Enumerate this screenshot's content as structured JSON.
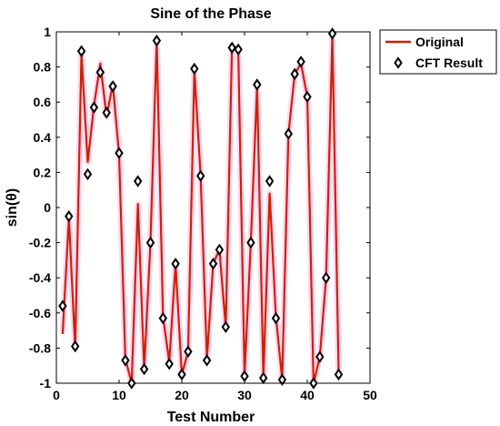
{
  "chart_data": {
    "type": "line",
    "title": "Sine of the Phase",
    "xlabel": "Test Number",
    "ylabel": "sin(θ)",
    "xlim": [
      0,
      50
    ],
    "ylim": [
      -1,
      1
    ],
    "xticks": [
      "0",
      "10",
      "20",
      "30",
      "40",
      "50"
    ],
    "yticks": [
      "1",
      "0.8",
      "0.6",
      "0.4",
      "0.2",
      "0",
      "-0.2",
      "-0.4",
      "-0.6",
      "-0.8",
      "-1"
    ],
    "grid": false,
    "legend_position": "outside-top-right",
    "colors": {
      "original": "#cc2200",
      "markers": "#000000",
      "glow": "#ff44cc"
    },
    "series": [
      {
        "name": "Original",
        "style": "line",
        "x": [
          1,
          2,
          3,
          4,
          5,
          6,
          7,
          8,
          9,
          10,
          11,
          12,
          13,
          14,
          15,
          16,
          17,
          18,
          19,
          20,
          21,
          22,
          23,
          24,
          25,
          26,
          27,
          28,
          29,
          30,
          31,
          32,
          33,
          34,
          35,
          36,
          37,
          38,
          39,
          40,
          41,
          42,
          43,
          44,
          45
        ],
        "y": [
          -0.72,
          -0.06,
          -0.8,
          0.87,
          0.26,
          0.58,
          0.82,
          0.52,
          0.7,
          0.3,
          -0.86,
          -1.0,
          0.02,
          -0.92,
          -0.2,
          0.95,
          -0.62,
          -0.88,
          -0.32,
          -0.95,
          -0.82,
          0.78,
          0.18,
          -0.86,
          -0.32,
          -0.24,
          -0.68,
          0.91,
          0.89,
          -0.95,
          -0.2,
          0.69,
          -0.96,
          0.08,
          -0.62,
          -0.98,
          0.42,
          0.76,
          0.82,
          0.63,
          -1.0,
          -0.85,
          -0.4,
          0.98,
          -0.94
        ]
      },
      {
        "name": "CFT Result",
        "style": "marker",
        "x": [
          1,
          2,
          3,
          4,
          5,
          6,
          7,
          8,
          9,
          10,
          11,
          12,
          13,
          14,
          15,
          16,
          17,
          18,
          19,
          20,
          21,
          22,
          23,
          24,
          25,
          26,
          27,
          28,
          29,
          30,
          31,
          32,
          33,
          34,
          35,
          36,
          37,
          38,
          39,
          40,
          41,
          42,
          43,
          44,
          45
        ],
        "y": [
          -0.56,
          -0.05,
          -0.79,
          0.89,
          0.19,
          0.57,
          0.77,
          0.54,
          0.69,
          0.31,
          -0.87,
          -1.0,
          0.15,
          -0.92,
          -0.2,
          0.95,
          -0.63,
          -0.89,
          -0.32,
          -0.95,
          -0.82,
          0.79,
          0.18,
          -0.87,
          -0.32,
          -0.24,
          -0.68,
          0.91,
          0.9,
          -0.96,
          -0.2,
          0.7,
          -0.97,
          0.15,
          -0.63,
          -0.98,
          0.42,
          0.76,
          0.83,
          0.63,
          -1.0,
          -0.85,
          -0.4,
          0.99,
          -0.95
        ]
      }
    ]
  }
}
